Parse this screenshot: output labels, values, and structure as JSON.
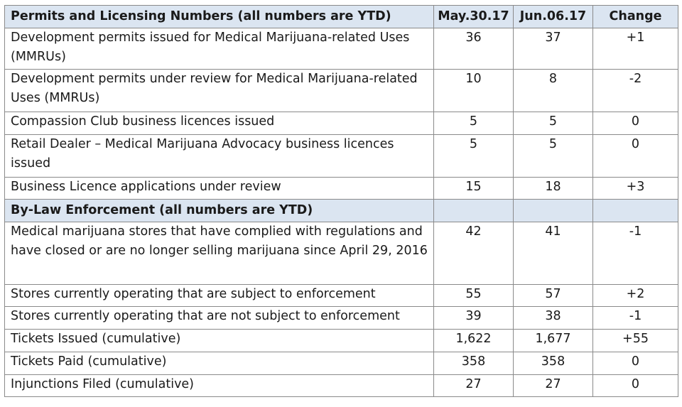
{
  "sections": [
    {
      "title": "Permits and Licensing Numbers (all numbers are YTD)",
      "columns": [
        "May.30.17",
        "Jun.06.17",
        "Change"
      ],
      "rows": [
        {
          "label": "Development permits issued for Medical Marijuana-related Uses (MMRUs)",
          "may": "36",
          "jun": "37",
          "change": "+1"
        },
        {
          "label": "Development permits under review for Medical Marijuana-related Uses (MMRUs)",
          "may": "10",
          "jun": "8",
          "change": "-2"
        },
        {
          "label": "Compassion Club business licences issued",
          "may": "5",
          "jun": "5",
          "change": "0"
        },
        {
          "label": "Retail Dealer – Medical Marijuana Advocacy business licences issued",
          "may": "5",
          "jun": "5",
          "change": "0"
        },
        {
          "label": "Business Licence applications under review",
          "may": "15",
          "jun": "18",
          "change": "+3"
        }
      ]
    },
    {
      "title": "By-Law Enforcement (all numbers are YTD)",
      "rows": [
        {
          "label": "Medical marijuana stores that have complied with regulations and have closed or are no longer selling marijuana since April 29, 2016",
          "may": "42",
          "jun": "41",
          "change": "-1"
        },
        {
          "label": "Stores currently operating that are subject to enforcement",
          "may": "55",
          "jun": "57",
          "change": "+2"
        },
        {
          "label": "Stores currently operating that are not subject to enforcement",
          "may": "39",
          "jun": "38",
          "change": "-1"
        },
        {
          "label": "Tickets Issued (cumulative)",
          "may": "1,622",
          "jun": "1,677",
          "change": "+55"
        },
        {
          "label": "Tickets Paid (cumulative)",
          "may": "358",
          "jun": "358",
          "change": "0"
        },
        {
          "label": "Injunctions Filed (cumulative)",
          "may": "27",
          "jun": "27",
          "change": "0"
        }
      ]
    }
  ]
}
